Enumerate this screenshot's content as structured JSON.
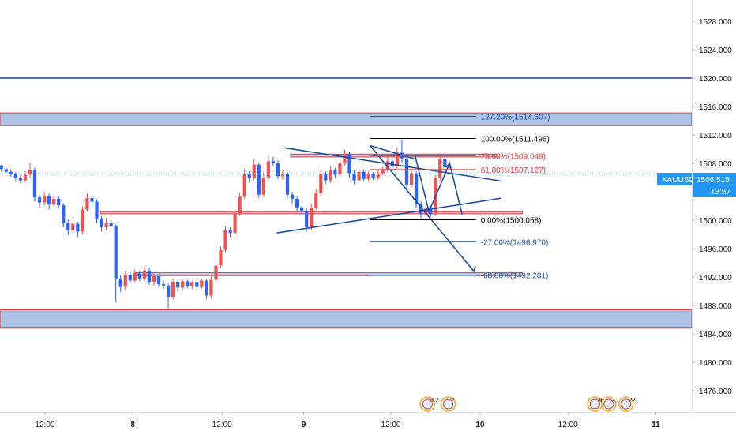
{
  "symbol": "XAUUSD",
  "colors": {
    "up": "#ef5350",
    "down": "#2962ff",
    "zone_fill": "#aec2e6",
    "zone_border": "#e53935",
    "level_line": "#1a3d9e",
    "pattern": "#1f4fa0",
    "fib_red": "#e53935",
    "fib_blue": "#1f4fa0",
    "fib_black": "#000000",
    "price_tag": "#2196f3",
    "axis_text": "#131722"
  },
  "price_axis": {
    "ticks": [
      "1528.000",
      "1524.000",
      "1520.000",
      "1516.000",
      "1512.000",
      "1508.000",
      "1504.000",
      "1500.000",
      "1496.000",
      "1492.000",
      "1488.000",
      "1484.000",
      "1480.000",
      "1476.000"
    ]
  },
  "time_axis": {
    "ticks": [
      "12:00",
      "8",
      "12:00",
      "9",
      "12:00",
      "10",
      "12:00",
      "11"
    ]
  },
  "current_price": {
    "symbol": "XAUUSD",
    "value": "1506.518",
    "countdown": "13:57"
  },
  "fib_labels": [
    {
      "text": "127.20%(1514.607)",
      "color": "blue"
    },
    {
      "text": "100.00%(1511.496)",
      "color": "black"
    },
    {
      "text": "78.60%(1509.049)",
      "color": "red"
    },
    {
      "text": "61.80%(1507.127)",
      "color": "red"
    },
    {
      "text": "0.00%(1500.058)",
      "color": "black"
    },
    {
      "text": "-27.00%(1496.970)",
      "color": "blue"
    },
    {
      "text": "-68.00%(1492.281)",
      "color": "blue"
    }
  ],
  "event_badges": [
    {
      "text": "3 2"
    },
    {
      "text": "2"
    },
    {
      "text": "36"
    },
    {
      "text": "2"
    },
    {
      "text": "22"
    }
  ],
  "chart_data": {
    "type": "candlestick",
    "symbol": "XAUUSD",
    "y_range": [
      1473,
      1531
    ],
    "x_range": [
      0,
      100
    ],
    "grid": false,
    "price_levels": [
      1520.0,
      1501.0,
      1492.4
    ],
    "horizontal_zones": [
      {
        "low": 1513.3,
        "high": 1515.1
      },
      {
        "low": 1484.8,
        "high": 1487.4
      },
      {
        "low": 1500.9,
        "high": 1501.2
      },
      {
        "low": 1492.2,
        "high": 1492.6
      },
      {
        "low": 1508.9,
        "high": 1509.3
      }
    ],
    "fibonacci": [
      {
        "level": "127.20%",
        "price": 1514.607
      },
      {
        "level": "100.00%",
        "price": 1511.496
      },
      {
        "level": "78.60%",
        "price": 1509.049
      },
      {
        "level": "61.80%",
        "price": 1507.127
      },
      {
        "level": "0.00%",
        "price": 1500.058
      },
      {
        "level": "-27.00%",
        "price": 1496.97
      },
      {
        "level": "-68.00%",
        "price": 1492.281
      }
    ],
    "candles": [
      [
        1507.6,
        1507.2,
        1507.8,
        1506.8
      ],
      [
        1507.2,
        1506.8,
        1507.5,
        1506.4
      ],
      [
        1506.8,
        1506.5,
        1507.2,
        1506.1
      ],
      [
        1506.5,
        1505.9,
        1506.8,
        1505.6
      ],
      [
        1505.9,
        1505.6,
        1506.3,
        1505.2
      ],
      [
        1505.6,
        1506.4,
        1506.9,
        1505.3
      ],
      [
        1506.4,
        1507.0,
        1508.1,
        1506.0
      ],
      [
        1507.0,
        1503.2,
        1507.4,
        1502.6
      ],
      [
        1503.2,
        1502.5,
        1503.6,
        1501.8
      ],
      [
        1502.5,
        1503.4,
        1504.0,
        1502.1
      ],
      [
        1503.4,
        1502.2,
        1503.8,
        1501.5
      ],
      [
        1502.2,
        1503.0,
        1503.5,
        1501.9
      ],
      [
        1503.0,
        1502.1,
        1503.4,
        1501.6
      ],
      [
        1502.1,
        1499.6,
        1502.4,
        1499.0
      ],
      [
        1499.6,
        1498.6,
        1500.1,
        1497.9
      ],
      [
        1498.6,
        1499.5,
        1500.0,
        1498.2
      ],
      [
        1499.5,
        1498.4,
        1499.8,
        1497.6
      ],
      [
        1498.4,
        1501.5,
        1502.0,
        1498.0
      ],
      [
        1501.5,
        1503.1,
        1503.8,
        1501.2
      ],
      [
        1503.1,
        1502.6,
        1503.4,
        1501.9
      ],
      [
        1502.6,
        1500.2,
        1502.9,
        1499.6
      ],
      [
        1500.2,
        1499.0,
        1500.6,
        1498.4
      ],
      [
        1499.0,
        1499.6,
        1500.3,
        1498.6
      ],
      [
        1499.6,
        1499.2,
        1500.0,
        1498.8
      ],
      [
        1499.2,
        1491.8,
        1499.4,
        1488.4
      ],
      [
        1491.8,
        1490.6,
        1492.3,
        1489.9
      ],
      [
        1490.6,
        1492.3,
        1492.8,
        1490.1
      ],
      [
        1492.3,
        1491.5,
        1492.7,
        1491.0
      ],
      [
        1491.5,
        1492.6,
        1493.1,
        1491.2
      ],
      [
        1492.6,
        1491.8,
        1492.9,
        1491.4
      ],
      [
        1491.8,
        1492.9,
        1493.4,
        1491.5
      ],
      [
        1492.9,
        1491.3,
        1493.2,
        1490.9
      ],
      [
        1491.3,
        1492.1,
        1492.5,
        1490.8
      ],
      [
        1492.1,
        1491.0,
        1492.4,
        1490.6
      ],
      [
        1491.0,
        1490.8,
        1491.5,
        1490.3
      ],
      [
        1490.8,
        1489.2,
        1491.1,
        1487.6
      ],
      [
        1489.2,
        1491.3,
        1491.8,
        1488.8
      ],
      [
        1491.3,
        1490.5,
        1491.6,
        1490.0
      ],
      [
        1490.5,
        1491.4,
        1491.7,
        1490.2
      ],
      [
        1491.4,
        1490.7,
        1491.6,
        1490.4
      ],
      [
        1490.7,
        1491.2,
        1491.5,
        1490.3
      ],
      [
        1491.2,
        1490.6,
        1491.4,
        1490.2
      ],
      [
        1490.6,
        1491.5,
        1491.8,
        1490.3
      ],
      [
        1491.5,
        1489.4,
        1491.7,
        1488.9
      ],
      [
        1489.4,
        1491.6,
        1492.1,
        1489.0
      ],
      [
        1491.6,
        1493.6,
        1494.0,
        1491.4
      ],
      [
        1493.6,
        1495.8,
        1496.3,
        1493.3
      ],
      [
        1495.8,
        1498.6,
        1499.2,
        1495.5
      ],
      [
        1498.6,
        1498.2,
        1499.0,
        1497.6
      ],
      [
        1498.2,
        1500.9,
        1501.5,
        1497.9
      ],
      [
        1500.9,
        1503.3,
        1503.9,
        1500.6
      ],
      [
        1503.3,
        1506.5,
        1507.2,
        1503.0
      ],
      [
        1506.5,
        1505.9,
        1506.9,
        1505.3
      ],
      [
        1505.9,
        1507.8,
        1508.6,
        1505.6
      ],
      [
        1507.8,
        1503.6,
        1508.1,
        1503.1
      ],
      [
        1503.6,
        1506.0,
        1506.7,
        1503.2
      ],
      [
        1506.0,
        1508.3,
        1509.0,
        1505.7
      ],
      [
        1508.3,
        1508.0,
        1508.9,
        1507.6
      ],
      [
        1508.0,
        1506.2,
        1508.4,
        1505.8
      ],
      [
        1506.2,
        1506.5,
        1507.0,
        1505.7
      ],
      [
        1506.5,
        1503.6,
        1506.8,
        1503.1
      ],
      [
        1503.6,
        1503.0,
        1504.0,
        1502.4
      ],
      [
        1503.0,
        1501.8,
        1503.4,
        1501.2
      ],
      [
        1501.8,
        1501.3,
        1502.1,
        1500.8
      ],
      [
        1501.3,
        1499.0,
        1501.6,
        1498.4
      ],
      [
        1499.0,
        1501.7,
        1502.3,
        1498.6
      ],
      [
        1501.7,
        1503.8,
        1504.4,
        1501.4
      ],
      [
        1503.8,
        1506.5,
        1507.2,
        1503.5
      ],
      [
        1506.5,
        1505.6,
        1506.9,
        1505.1
      ],
      [
        1505.6,
        1507.0,
        1507.6,
        1505.2
      ],
      [
        1507.0,
        1506.4,
        1507.4,
        1505.9
      ],
      [
        1506.4,
        1508.0,
        1508.6,
        1506.1
      ],
      [
        1508.0,
        1509.3,
        1509.9,
        1507.7
      ],
      [
        1509.3,
        1506.6,
        1509.6,
        1506.0
      ],
      [
        1506.6,
        1505.6,
        1507.0,
        1505.0
      ],
      [
        1505.6,
        1506.8,
        1507.3,
        1505.3
      ],
      [
        1506.8,
        1505.8,
        1507.1,
        1505.4
      ],
      [
        1505.8,
        1506.5,
        1506.9,
        1505.4
      ],
      [
        1506.5,
        1506.0,
        1506.8,
        1505.6
      ],
      [
        1506.0,
        1506.6,
        1507.0,
        1505.7
      ],
      [
        1506.6,
        1507.1,
        1507.5,
        1506.3
      ],
      [
        1507.1,
        1508.3,
        1509.0,
        1506.8
      ],
      [
        1508.3,
        1507.6,
        1508.7,
        1507.2
      ],
      [
        1507.6,
        1509.5,
        1510.2,
        1507.3
      ],
      [
        1509.5,
        1508.7,
        1511.3,
        1508.2
      ],
      [
        1508.7,
        1505.0,
        1509.0,
        1504.4
      ],
      [
        1505.0,
        1506.6,
        1507.1,
        1504.6
      ],
      [
        1506.6,
        1502.3,
        1506.9,
        1501.7
      ],
      [
        1502.3,
        1500.9,
        1502.7,
        1500.3
      ],
      [
        1500.9,
        1501.6,
        1502.1,
        1500.5
      ],
      [
        1501.6,
        1500.9,
        1502.0,
        1500.4
      ],
      [
        1500.9,
        1505.9,
        1506.4,
        1500.6
      ],
      [
        1505.9,
        1508.6,
        1509.4,
        1505.6
      ],
      [
        1508.6,
        1507.4,
        1509.0,
        1506.9
      ]
    ]
  }
}
